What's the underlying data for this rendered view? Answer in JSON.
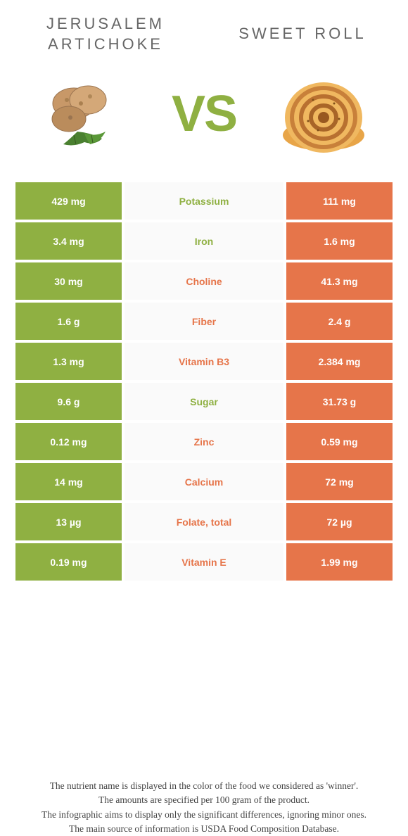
{
  "left_food": {
    "name": "Jerusalem artichoke",
    "color": "#8fb042"
  },
  "right_food": {
    "name": "Sweet roll",
    "color": "#e6754a"
  },
  "vs_label": "VS",
  "rows": [
    {
      "nutrient": "Potassium",
      "left": "429 mg",
      "right": "111 mg",
      "winner": "left"
    },
    {
      "nutrient": "Iron",
      "left": "3.4 mg",
      "right": "1.6 mg",
      "winner": "left"
    },
    {
      "nutrient": "Choline",
      "left": "30 mg",
      "right": "41.3 mg",
      "winner": "right"
    },
    {
      "nutrient": "Fiber",
      "left": "1.6 g",
      "right": "2.4 g",
      "winner": "right"
    },
    {
      "nutrient": "Vitamin B3",
      "left": "1.3 mg",
      "right": "2.384 mg",
      "winner": "right"
    },
    {
      "nutrient": "Sugar",
      "left": "9.6 g",
      "right": "31.73 g",
      "winner": "left"
    },
    {
      "nutrient": "Zinc",
      "left": "0.12 mg",
      "right": "0.59 mg",
      "winner": "right"
    },
    {
      "nutrient": "Calcium",
      "left": "14 mg",
      "right": "72 mg",
      "winner": "right"
    },
    {
      "nutrient": "Folate, total",
      "left": "13 µg",
      "right": "72 µg",
      "winner": "right"
    },
    {
      "nutrient": "Vitamin E",
      "left": "0.19 mg",
      "right": "1.99 mg",
      "winner": "right"
    }
  ],
  "footer_lines": [
    "The nutrient name is displayed in the color of the food we considered as 'winner'.",
    "The amounts are specified per 100 gram of the product.",
    "The infographic aims to display only the significant differences, ignoring minor ones.",
    "The main source of information is USDA Food Composition Database."
  ]
}
